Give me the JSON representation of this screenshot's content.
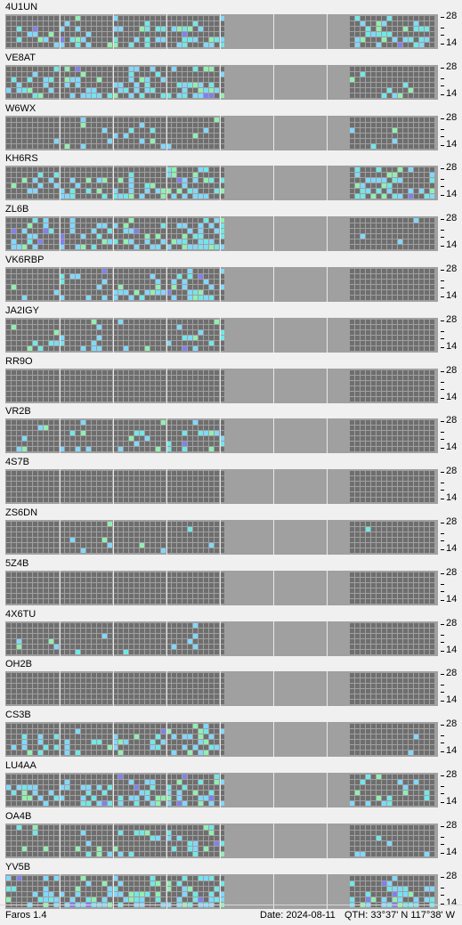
{
  "app": "Faros 1.4",
  "status": {
    "date": "Date: 2024-08-11",
    "qth": "QTH: 33°37' N  117°38' W"
  },
  "band_scale": {
    "top": "28",
    "bottom": "14"
  },
  "legend_colors": {
    "grid_empty": "#6e6e6e",
    "unavailable": "#a0a0a0",
    "weak": "#80d8ff",
    "medium": "#70e8e8",
    "strong": "#90f0b0",
    "special": "#8080f0"
  },
  "beacons": [
    {
      "callsign": "4U1UN",
      "activity": 0.3,
      "right_activity": 0.35
    },
    {
      "callsign": "VE8AT",
      "activity": 0.4,
      "right_activity": 0.05
    },
    {
      "callsign": "W6WX",
      "activity": 0.1,
      "right_activity": 0.02
    },
    {
      "callsign": "KH6RS",
      "activity": 0.4,
      "right_activity": 0.4
    },
    {
      "callsign": "ZL6B",
      "activity": 0.45,
      "right_activity": 0.05
    },
    {
      "callsign": "VK6RBP",
      "activity": 0.25,
      "right_activity": 0.0
    },
    {
      "callsign": "JA2IGY",
      "activity": 0.2,
      "right_activity": 0.0
    },
    {
      "callsign": "RR9O",
      "activity": 0.01,
      "right_activity": 0.0
    },
    {
      "callsign": "VR2B",
      "activity": 0.15,
      "right_activity": 0.0
    },
    {
      "callsign": "4S7B",
      "activity": 0.0,
      "right_activity": 0.0
    },
    {
      "callsign": "ZS6DN",
      "activity": 0.03,
      "right_activity": 0.01
    },
    {
      "callsign": "5Z4B",
      "activity": 0.0,
      "right_activity": 0.0
    },
    {
      "callsign": "4X6TU",
      "activity": 0.04,
      "right_activity": 0.0
    },
    {
      "callsign": "OH2B",
      "activity": 0.02,
      "right_activity": 0.0
    },
    {
      "callsign": "CS3B",
      "activity": 0.35,
      "right_activity": 0.03
    },
    {
      "callsign": "LU4AA",
      "activity": 0.45,
      "right_activity": 0.2
    },
    {
      "callsign": "OA4B",
      "activity": 0.2,
      "right_activity": 0.05
    },
    {
      "callsign": "YV5B",
      "activity": 0.5,
      "right_activity": 0.45
    }
  ]
}
